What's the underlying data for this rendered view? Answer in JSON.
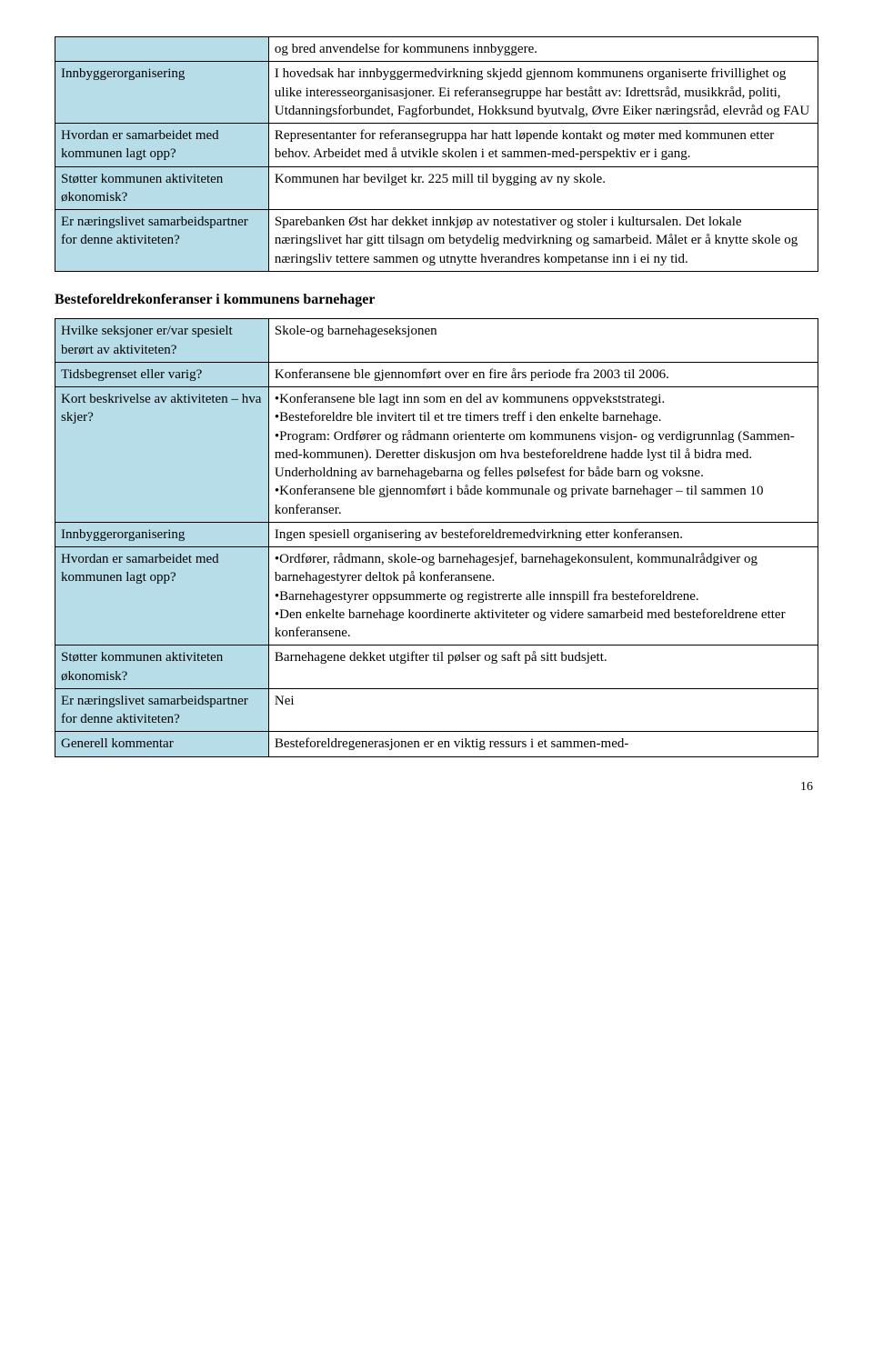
{
  "table1": {
    "rows": [
      {
        "left": "",
        "right": "og bred anvendelse for kommunens innbyggere."
      },
      {
        "left": "Innbyggerorganisering",
        "right": "I hovedsak har innbyggermedvirkning skjedd gjennom kommunens organiserte frivillighet og ulike interesseorganisasjoner. Ei referansegruppe har bestått av: Idrettsråd, musikkråd, politi, Utdanningsforbundet, Fagforbundet, Hokksund byutvalg, Øvre Eiker næringsråd, elevråd og FAU"
      },
      {
        "left": "Hvordan er samarbeidet med kommunen lagt opp?",
        "right": "Representanter for referansegruppa har hatt løpende kontakt og møter med kommunen etter behov. Arbeidet med å utvikle skolen i et sammen-med-perspektiv er i gang."
      },
      {
        "left": "Støtter kommunen aktiviteten økonomisk?",
        "right": "Kommunen har bevilget kr. 225 mill til bygging av ny skole."
      },
      {
        "left": "Er næringslivet samarbeidspartner for denne aktiviteten?",
        "right": "Sparebanken Øst har dekket innkjøp av notestativer og stoler i kultursalen. Det lokale næringslivet har gitt tilsagn om betydelig medvirkning og samarbeid. Målet er å knytte skole og næringsliv tettere sammen og utnytte hverandres kompetanse inn i ei ny tid."
      }
    ]
  },
  "section2_heading": "Besteforeldrekonferanser i kommunens barnehager",
  "table2": {
    "rows": [
      {
        "left": "Hvilke seksjoner er/var spesielt berørt av aktiviteten?",
        "right": "Skole-og barnehageseksjonen"
      },
      {
        "left": "Tidsbegrenset eller varig?",
        "right": "Konferansene ble gjennomført over en fire års periode fra 2003 til 2006."
      },
      {
        "left": "Kort beskrivelse av aktiviteten – hva skjer?",
        "right": "•Konferansene ble lagt inn som en del av kommunens oppvekststrategi.\n•Besteforeldre ble invitert til et tre timers treff i den enkelte barnehage.\n•Program: Ordfører og rådmann orienterte om kommunens visjon- og verdigrunnlag (Sammen-med-kommunen). Deretter diskusjon om hva besteforeldrene hadde lyst til å bidra med. Underholdning av barnehagebarna og felles pølsefest for både barn og voksne.\n•Konferansene ble gjennomført i både kommunale og private barnehager – til sammen 10 konferanser."
      },
      {
        "left": "Innbyggerorganisering",
        "right": "Ingen spesiell organisering av besteforeldremedvirkning etter konferansen."
      },
      {
        "left": "Hvordan er samarbeidet med kommunen lagt opp?",
        "right": "•Ordfører, rådmann, skole-og barnehagesjef, barnehagekonsulent, kommunalrådgiver og barnehagestyrer deltok på konferansene.\n•Barnehagestyrer oppsummerte og registrerte alle innspill fra besteforeldrene.\n•Den enkelte barnehage koordinerte aktiviteter og videre samarbeid med besteforeldrene etter konferansene."
      },
      {
        "left": "Støtter kommunen aktiviteten økonomisk?",
        "right": "Barnehagene dekket utgifter til pølser og saft på sitt budsjett."
      },
      {
        "left": "Er næringslivet samarbeidspartner for denne aktiviteten?",
        "right": "Nei"
      },
      {
        "left": "Generell kommentar",
        "right": "Besteforeldregenerasjonen er en viktig ressurs i et sammen-med-"
      }
    ]
  },
  "page_number": "16",
  "colors": {
    "left_bg": "#b6dde8",
    "border": "#000000",
    "text": "#000000"
  }
}
